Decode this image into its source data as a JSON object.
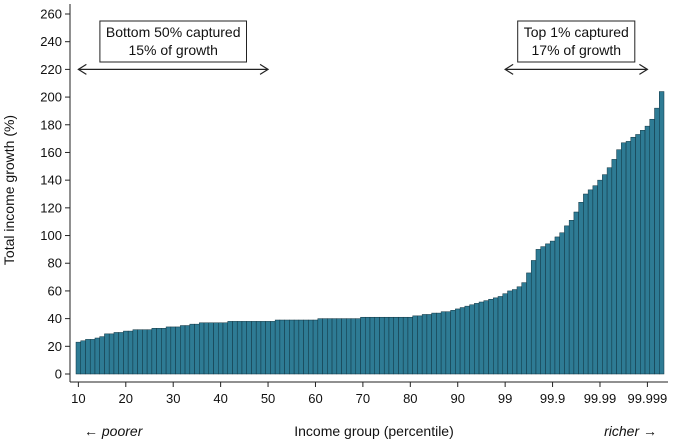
{
  "chart_data": {
    "type": "bar",
    "title": "",
    "ylabel": "Total income growth (%)",
    "xlabel": "Income group (percentile)",
    "ylim": [
      0,
      260
    ],
    "yticks": [
      0,
      20,
      40,
      60,
      80,
      100,
      120,
      140,
      160,
      180,
      200,
      220,
      240,
      260
    ],
    "xticks": [
      "10",
      "20",
      "30",
      "40",
      "50",
      "60",
      "70",
      "80",
      "90",
      "99",
      "99.9",
      "99.99",
      "99.999"
    ],
    "grid": false,
    "bar_color": "#2e7b94",
    "left_note": "← poorer",
    "right_note": "richer →",
    "annotations": [
      {
        "line1": "Bottom 50% captured",
        "line2": "15% of growth",
        "from": "10",
        "to": "50"
      },
      {
        "line1": "Top 1% captured",
        "line2": "17% of growth",
        "from": "99",
        "to": "99.999"
      }
    ],
    "values": [
      23,
      24,
      25,
      25,
      26,
      27,
      29,
      29,
      30,
      30,
      31,
      31,
      32,
      32,
      32,
      32,
      33,
      33,
      33,
      34,
      34,
      34,
      35,
      35,
      36,
      36,
      37,
      37,
      37,
      37,
      37,
      37,
      38,
      38,
      38,
      38,
      38,
      38,
      38,
      38,
      38,
      38,
      39,
      39,
      39,
      39,
      39,
      39,
      39,
      39,
      39,
      40,
      40,
      40,
      40,
      40,
      40,
      40,
      40,
      40,
      41,
      41,
      41,
      41,
      41,
      41,
      41,
      41,
      41,
      41,
      41,
      42,
      42,
      43,
      43,
      44,
      44,
      45,
      45,
      46,
      47,
      48,
      49,
      50,
      51,
      52,
      53,
      54,
      55,
      56,
      58,
      60,
      61,
      63,
      66,
      73,
      82,
      90,
      92,
      94,
      96,
      99,
      102,
      107,
      111,
      117,
      124,
      130,
      133,
      136,
      140,
      144,
      149,
      155,
      162,
      167,
      168,
      171,
      173,
      176,
      179,
      184,
      192,
      204
    ]
  }
}
